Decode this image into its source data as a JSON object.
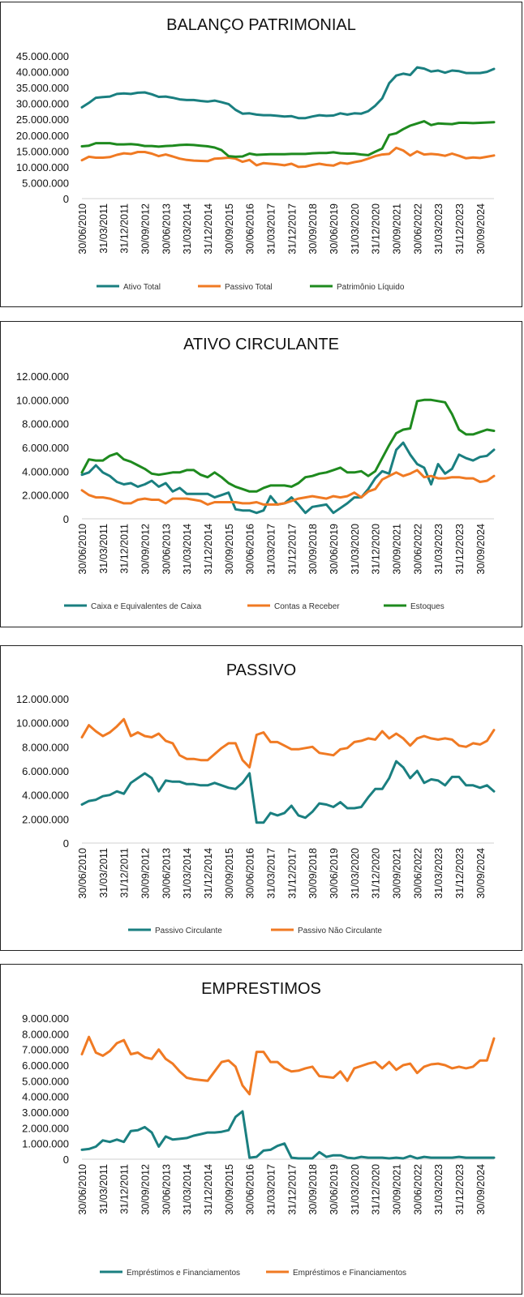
{
  "dates": [
    "30/06/2010",
    "31/03/2011",
    "31/12/2011",
    "30/09/2012",
    "30/06/2013",
    "31/03/2014",
    "31/12/2014",
    "30/09/2015",
    "30/06/2016",
    "31/03/2017",
    "31/12/2017",
    "30/09/2018",
    "30/06/2019",
    "31/03/2020",
    "31/12/2020",
    "30/09/2021",
    "30/06/2022",
    "31/03/2023",
    "31/12/2023",
    "30/09/2024"
  ],
  "chart_data": [
    {
      "type": "line",
      "title": "BALANÇO PATRIMONIAL",
      "ylim": [
        0,
        45000000
      ],
      "yticks": [
        "0",
        "5.000.000",
        "10.000.000",
        "15.000.000",
        "20.000.000",
        "25.000.000",
        "30.000.000",
        "35.000.000",
        "40.000.000",
        "45.000.000"
      ],
      "legend_position": "bottom",
      "series": [
        {
          "name": "Ativo Total",
          "color": "#1a7f80",
          "values": [
            28800000,
            30200000,
            31800000,
            32000000,
            32200000,
            33000000,
            33200000,
            33000000,
            33400000,
            33500000,
            32900000,
            32100000,
            32200000,
            31800000,
            31300000,
            31100000,
            31100000,
            30800000,
            30600000,
            30900000,
            30400000,
            29800000,
            28000000,
            26800000,
            26900000,
            26500000,
            26300000,
            26300000,
            26100000,
            25900000,
            26000000,
            25400000,
            25400000,
            25900000,
            26300000,
            26100000,
            26200000,
            26900000,
            26500000,
            26900000,
            26800000,
            27600000,
            29300000,
            31600000,
            36400000,
            38800000,
            39400000,
            39000000,
            41400000,
            41000000,
            40100000,
            40400000,
            39700000,
            40400000,
            40200000,
            39600000,
            39600000,
            39600000,
            40000000,
            40900000
          ]
        },
        {
          "name": "Passivo Total",
          "color": "#f07a23",
          "values": [
            12100000,
            13200000,
            12900000,
            12900000,
            13100000,
            13800000,
            14300000,
            14100000,
            14700000,
            14700000,
            14200000,
            13400000,
            13900000,
            13300000,
            12600000,
            12200000,
            12000000,
            11900000,
            11800000,
            12600000,
            12700000,
            12900000,
            12600000,
            11600000,
            12200000,
            10500000,
            11200000,
            11000000,
            10800000,
            10500000,
            11000000,
            10000000,
            10100000,
            10600000,
            11000000,
            10600000,
            10400000,
            11300000,
            11000000,
            11500000,
            11900000,
            12600000,
            13400000,
            13900000,
            14100000,
            16000000,
            15200000,
            13600000,
            14900000,
            13900000,
            14100000,
            13900000,
            13500000,
            14200000,
            13500000,
            12700000,
            13000000,
            12800000,
            13200000,
            13600000
          ]
        },
        {
          "name": "Patrimônio Líquido",
          "color": "#1e8a1e",
          "values": [
            16500000,
            16700000,
            17500000,
            17500000,
            17500000,
            17100000,
            17100000,
            17200000,
            17000000,
            16600000,
            16600000,
            16400000,
            16600000,
            16700000,
            16900000,
            17000000,
            16900000,
            16700000,
            16500000,
            16100000,
            15300000,
            13400000,
            13200000,
            13300000,
            14200000,
            13800000,
            13900000,
            14000000,
            14000000,
            14000000,
            14100000,
            14100000,
            14100000,
            14300000,
            14400000,
            14400000,
            14600000,
            14300000,
            14200000,
            14200000,
            13900000,
            13700000,
            14800000,
            15800000,
            20100000,
            20600000,
            21900000,
            23000000,
            23700000,
            24400000,
            23200000,
            23700000,
            23600000,
            23500000,
            23900000,
            23900000,
            23800000,
            23900000,
            24000000,
            24100000
          ]
        }
      ]
    },
    {
      "type": "line",
      "title": "ATIVO CIRCULANTE",
      "ylim": [
        0,
        12000000
      ],
      "yticks": [
        "0",
        "2.000.000",
        "4.000.000",
        "6.000.000",
        "8.000.000",
        "10.000.000",
        "12.000.000"
      ],
      "legend_position": "bottom",
      "series": [
        {
          "name": "Caixa e Equivalentes de Caixa",
          "color": "#1a7f80",
          "values": [
            3700000,
            3900000,
            4500000,
            3900000,
            3600000,
            3100000,
            2900000,
            3000000,
            2700000,
            2900000,
            3200000,
            2700000,
            3000000,
            2300000,
            2600000,
            2100000,
            2100000,
            2100000,
            2100000,
            1800000,
            2000000,
            2200000,
            800000,
            700000,
            700000,
            500000,
            700000,
            1900000,
            1200000,
            1300000,
            1800000,
            1200000,
            500000,
            1000000,
            1100000,
            1200000,
            500000,
            900000,
            1300000,
            1800000,
            1800000,
            2500000,
            3400000,
            4000000,
            3800000,
            5800000,
            6400000,
            5400000,
            4600000,
            4300000,
            2900000,
            4600000,
            3800000,
            4200000,
            5400000,
            5100000,
            4900000,
            5200000,
            5300000,
            5800000
          ]
        },
        {
          "name": "Contas a Receber",
          "color": "#f07a23",
          "values": [
            2400000,
            2000000,
            1800000,
            1800000,
            1700000,
            1500000,
            1300000,
            1300000,
            1600000,
            1700000,
            1600000,
            1600000,
            1300000,
            1700000,
            1700000,
            1700000,
            1600000,
            1500000,
            1200000,
            1400000,
            1400000,
            1400000,
            1400000,
            1300000,
            1300000,
            1400000,
            1200000,
            1200000,
            1200000,
            1300000,
            1500000,
            1700000,
            1800000,
            1900000,
            1800000,
            1700000,
            1900000,
            1800000,
            1900000,
            2200000,
            1800000,
            2300000,
            2500000,
            3300000,
            3600000,
            3900000,
            3600000,
            3800000,
            4100000,
            3500000,
            3600000,
            3400000,
            3400000,
            3500000,
            3500000,
            3400000,
            3400000,
            3100000,
            3200000,
            3600000
          ]
        },
        {
          "name": "Estoques",
          "color": "#1e8a1e",
          "values": [
            3900000,
            5000000,
            4900000,
            4900000,
            5300000,
            5500000,
            5000000,
            4800000,
            4500000,
            4200000,
            3800000,
            3700000,
            3800000,
            3900000,
            3900000,
            4100000,
            4100000,
            3700000,
            3500000,
            3900000,
            3500000,
            3000000,
            2700000,
            2500000,
            2300000,
            2300000,
            2600000,
            2800000,
            2800000,
            2800000,
            2700000,
            3000000,
            3500000,
            3600000,
            3800000,
            3900000,
            4100000,
            4300000,
            3900000,
            3900000,
            4000000,
            3600000,
            4000000,
            5100000,
            6200000,
            7200000,
            7500000,
            7600000,
            9900000,
            10000000,
            10000000,
            9900000,
            9800000,
            8800000,
            7500000,
            7100000,
            7100000,
            7300000,
            7500000,
            7400000
          ]
        }
      ]
    },
    {
      "type": "line",
      "title": "PASSIVO",
      "ylim": [
        0,
        12000000
      ],
      "yticks": [
        "0",
        "2.000.000",
        "4.000.000",
        "6.000.000",
        "8.000.000",
        "10.000.000",
        "12.000.000"
      ],
      "legend_position": "bottom",
      "series": [
        {
          "name": "Passivo Circulante",
          "color": "#1a7f80",
          "values": [
            3200000,
            3500000,
            3600000,
            3900000,
            4000000,
            4300000,
            4100000,
            5000000,
            5400000,
            5800000,
            5400000,
            4300000,
            5200000,
            5100000,
            5100000,
            4900000,
            4900000,
            4800000,
            4800000,
            5000000,
            4800000,
            4600000,
            4500000,
            5000000,
            5800000,
            1700000,
            1700000,
            2500000,
            2300000,
            2500000,
            3100000,
            2300000,
            2100000,
            2600000,
            3300000,
            3200000,
            3000000,
            3400000,
            2900000,
            2900000,
            3000000,
            3800000,
            4500000,
            4500000,
            5400000,
            6800000,
            6300000,
            5400000,
            6000000,
            5000000,
            5300000,
            5200000,
            4800000,
            5500000,
            5500000,
            4800000,
            4800000,
            4600000,
            4800000,
            4300000
          ]
        },
        {
          "name": "Passivo Não Circulante",
          "color": "#f07a23",
          "values": [
            8800000,
            9800000,
            9300000,
            8900000,
            9200000,
            9700000,
            10300000,
            8900000,
            9200000,
            8900000,
            8800000,
            9100000,
            8500000,
            8300000,
            7300000,
            7000000,
            7000000,
            6900000,
            6900000,
            7400000,
            7900000,
            8300000,
            8300000,
            6900000,
            6300000,
            9000000,
            9200000,
            8400000,
            8400000,
            8100000,
            7800000,
            7800000,
            7900000,
            8000000,
            7500000,
            7400000,
            7300000,
            7800000,
            7900000,
            8400000,
            8500000,
            8700000,
            8600000,
            9300000,
            8700000,
            9100000,
            8700000,
            8100000,
            8700000,
            8900000,
            8700000,
            8600000,
            8700000,
            8600000,
            8100000,
            8000000,
            8300000,
            8200000,
            8500000,
            9400000
          ]
        }
      ]
    },
    {
      "type": "line",
      "title": "EMPRESTIMOS",
      "ylim": [
        0,
        9000000
      ],
      "yticks": [
        "0",
        "1.000.000",
        "2.000.000",
        "3.000.000",
        "4.000.000",
        "5.000.000",
        "6.000.000",
        "7.000.000",
        "8.000.000",
        "9.000.000"
      ],
      "legend_position": "bottom",
      "series": [
        {
          "name": "Empréstimos e Financiamentos",
          "color": "#1a7f80",
          "values": [
            600000,
            650000,
            800000,
            1200000,
            1100000,
            1250000,
            1100000,
            1800000,
            1850000,
            2050000,
            1700000,
            800000,
            1450000,
            1250000,
            1300000,
            1350000,
            1500000,
            1600000,
            1700000,
            1700000,
            1750000,
            1850000,
            2700000,
            3050000,
            100000,
            150000,
            550000,
            600000,
            850000,
            1000000,
            100000,
            50000,
            50000,
            50000,
            450000,
            150000,
            250000,
            250000,
            100000,
            50000,
            150000,
            100000,
            100000,
            100000,
            50000,
            100000,
            50000,
            200000,
            50000,
            150000,
            100000,
            100000,
            100000,
            100000,
            150000,
            100000,
            100000,
            100000,
            100000,
            100000
          ]
        },
        {
          "name": "Empréstimos e Financiamentos",
          "color": "#f07a23",
          "values": [
            6700000,
            7800000,
            6800000,
            6600000,
            6900000,
            7400000,
            7600000,
            6700000,
            6800000,
            6500000,
            6400000,
            7000000,
            6400000,
            6100000,
            5600000,
            5200000,
            5100000,
            5050000,
            5000000,
            5600000,
            6200000,
            6300000,
            5900000,
            4700000,
            4150000,
            6850000,
            6850000,
            6200000,
            6200000,
            5800000,
            5600000,
            5650000,
            5800000,
            5900000,
            5300000,
            5250000,
            5200000,
            5600000,
            5000000,
            5800000,
            5950000,
            6100000,
            6200000,
            5800000,
            6200000,
            5700000,
            6000000,
            6100000,
            5500000,
            5900000,
            6050000,
            6100000,
            6000000,
            5800000,
            5900000,
            5800000,
            5900000,
            6300000,
            6300000,
            7700000
          ]
        }
      ]
    }
  ]
}
